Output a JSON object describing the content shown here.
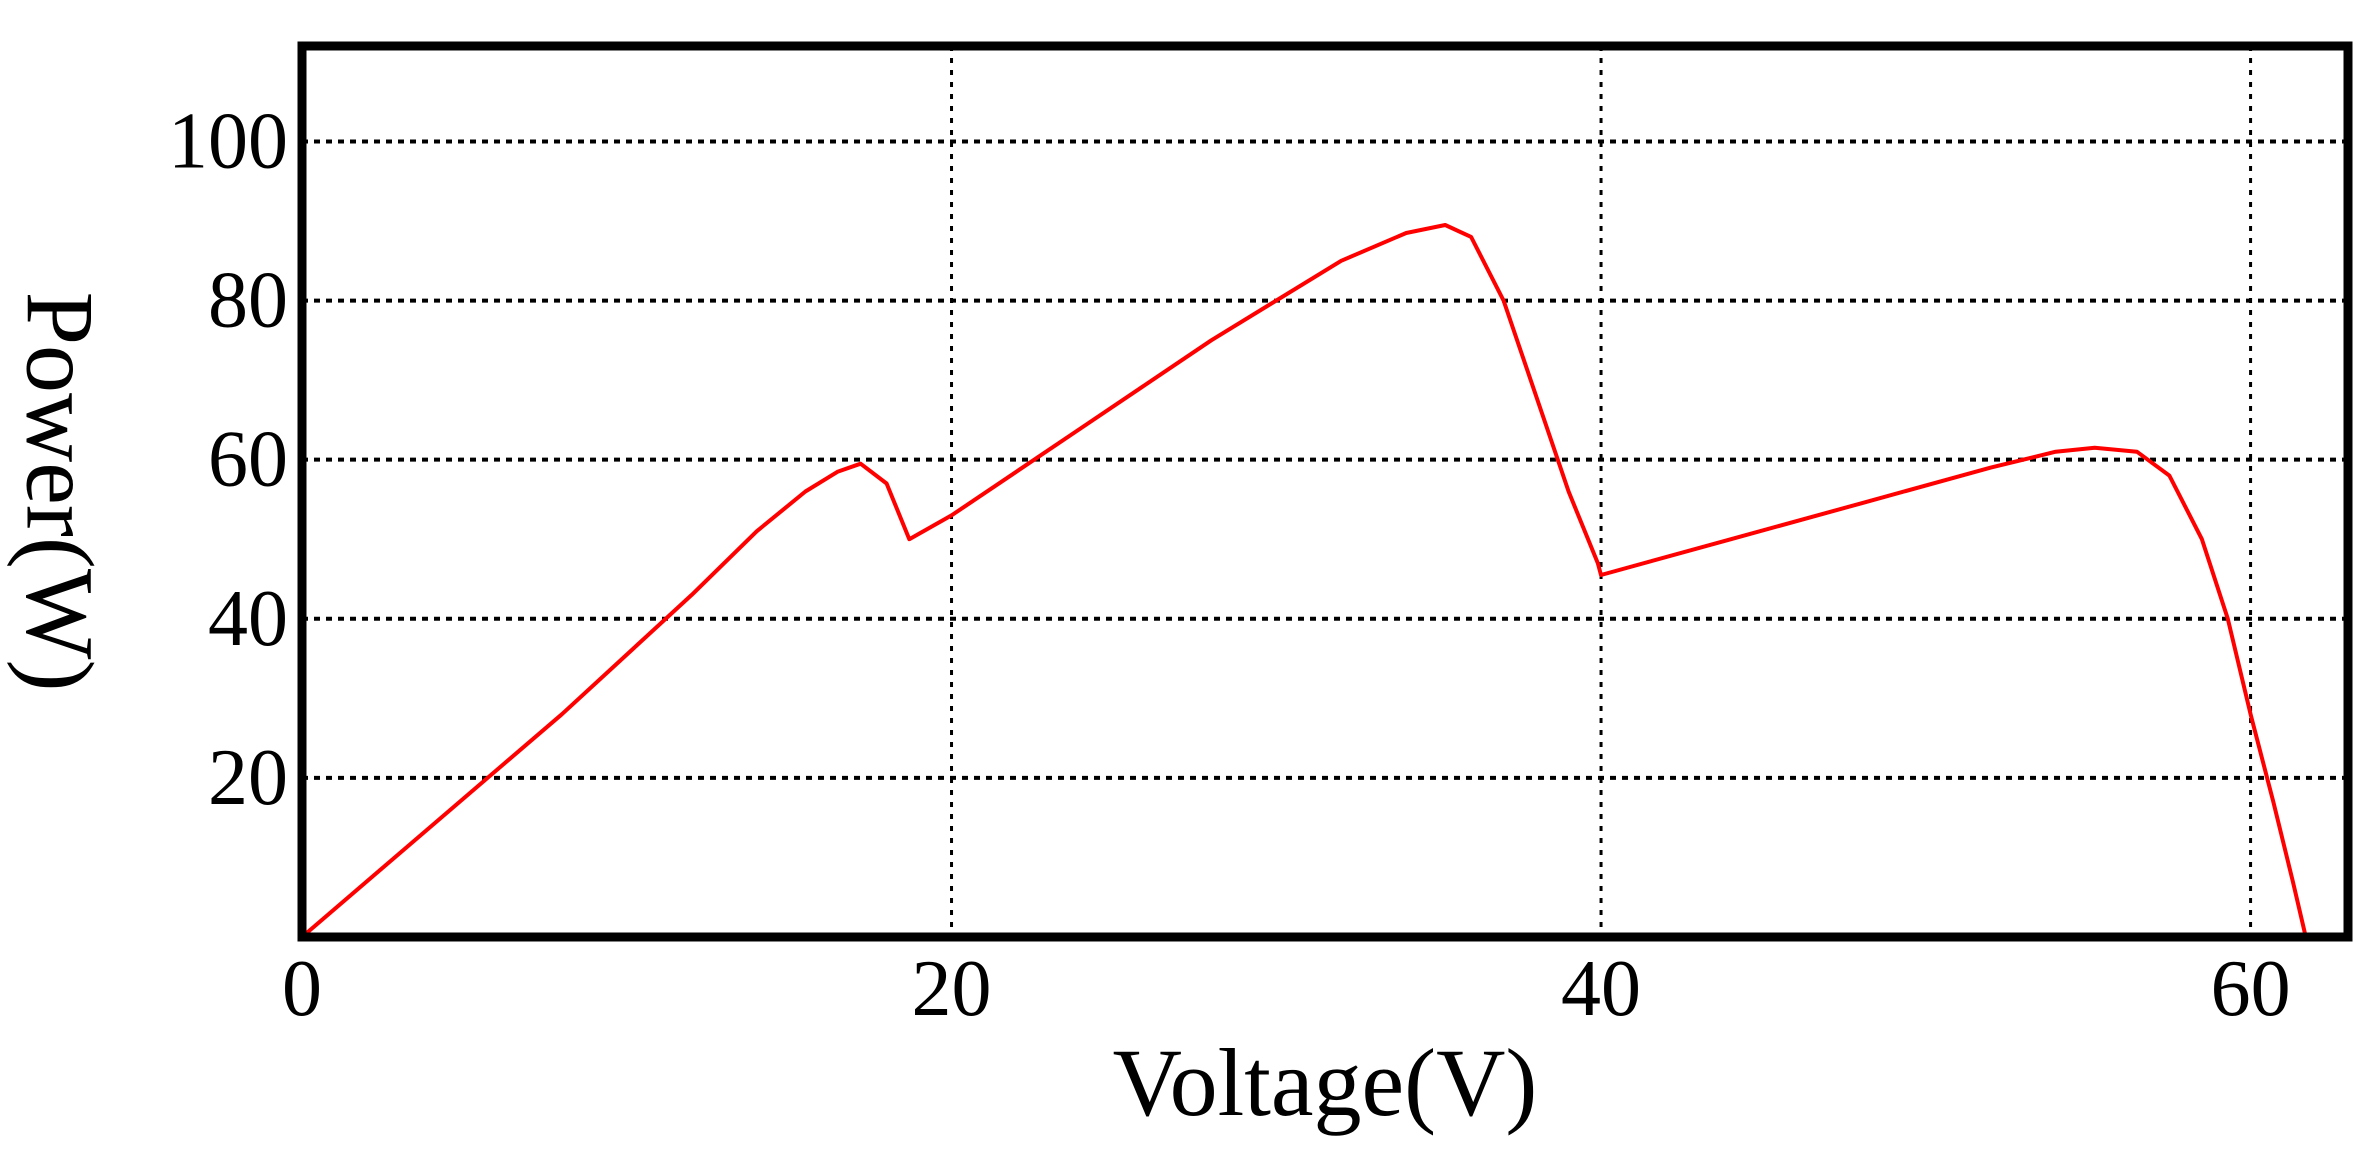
{
  "chart_data": {
    "type": "line",
    "title": "",
    "xlabel": "Voltage(V)",
    "ylabel": "Power(W)",
    "xlim": [
      0,
      63
    ],
    "ylim": [
      0,
      112
    ],
    "xticks": [
      0,
      20,
      40,
      60
    ],
    "yticks": [
      20,
      40,
      60,
      80,
      100
    ],
    "xtick_labels": [
      "0",
      "20",
      "40",
      "60"
    ],
    "ytick_labels": [
      "20",
      "40",
      "60",
      "80",
      "100"
    ],
    "grid": true,
    "legend": "none",
    "series": [
      {
        "color": "#ff0000",
        "x": [
          0,
          4,
          8,
          12,
          14,
          15.5,
          16.5,
          17.2,
          18,
          18.7,
          20,
          24,
          28,
          32,
          34,
          35.2,
          36,
          37,
          38,
          39,
          39.5,
          39.9,
          40,
          44,
          48,
          52,
          54,
          55.2,
          56.5,
          57.5,
          58.5,
          59.3,
          60,
          60.7,
          61.3,
          61.7
        ],
        "y": [
          0,
          14,
          28,
          43,
          51,
          56,
          58.5,
          59.5,
          57,
          50,
          53,
          64,
          75,
          85,
          88.5,
          89.5,
          88,
          80,
          68,
          56,
          51,
          47,
          45.5,
          50,
          54.5,
          59,
          61,
          61.5,
          61,
          58,
          50,
          40,
          28,
          17,
          7,
          0
        ]
      }
    ]
  }
}
